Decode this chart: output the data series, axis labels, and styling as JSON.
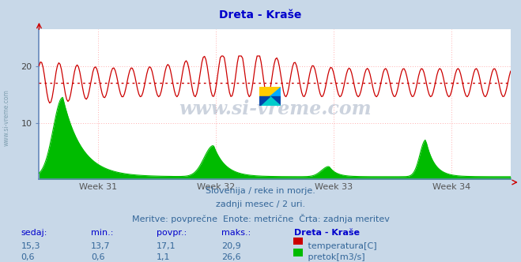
{
  "title": "Dreta - Kraše",
  "title_color": "#0000cc",
  "bg_color": "#c8d8e8",
  "plot_bg_color": "#ffffff",
  "grid_color": "#ffb0b0",
  "temp_color": "#cc0000",
  "flow_color": "#00bb00",
  "avg_line_color": "#cc0000",
  "border_color": "#6688bb",
  "temp_avg": 17.1,
  "temp_min": 13.7,
  "temp_max": 20.9,
  "temp_current": 15.3,
  "flow_avg": 1.1,
  "flow_min": 0.6,
  "flow_max": 26.6,
  "flow_current": 0.6,
  "watermark": "www.si-vreme.com",
  "sub_text1": "Slovenija / reke in morje.",
  "sub_text2": "zadnji mesec / 2 uri.",
  "sub_text3": "Meritve: povprečne  Enote: metrične  Črta: zadnja meritev",
  "week_labels": [
    "Week 31",
    "Week 32",
    "Week 33",
    "Week 34"
  ],
  "ytick_labels": [
    "10",
    "20"
  ],
  "ytick_vals": [
    10,
    20
  ],
  "ylim_max": 26.6,
  "n_points": 360,
  "text_color": "#336699",
  "header_color": "#0000cc"
}
